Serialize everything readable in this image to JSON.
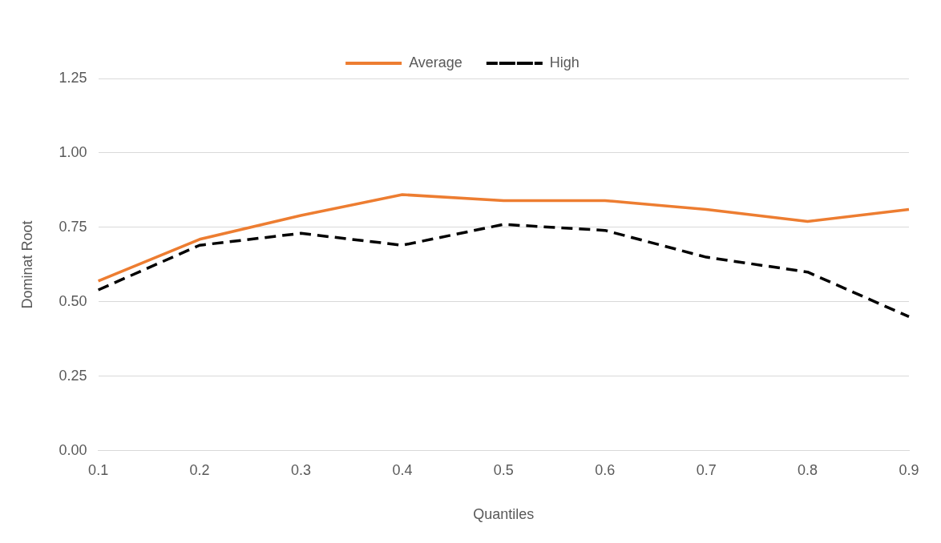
{
  "chart_data": {
    "type": "line",
    "xlabel": "Quantiles",
    "ylabel": "Dominat Root",
    "categories": [
      "0.1",
      "0.2",
      "0.3",
      "0.4",
      "0.5",
      "0.6",
      "0.7",
      "0.8",
      "0.9"
    ],
    "series": [
      {
        "name": "Average",
        "color": "#ed7d31",
        "line_style": "solid",
        "values": [
          0.57,
          0.71,
          0.79,
          0.86,
          0.84,
          0.84,
          0.81,
          0.77,
          0.81
        ]
      },
      {
        "name": "High",
        "color": "#000000",
        "line_style": "dashed",
        "values": [
          0.54,
          0.69,
          0.73,
          0.69,
          0.76,
          0.74,
          0.65,
          0.6,
          0.45
        ]
      }
    ],
    "ylim": [
      0,
      1.25
    ],
    "yticks": [
      {
        "value": 0,
        "label": "0.00"
      },
      {
        "value": 0.25,
        "label": "0.25"
      },
      {
        "value": 0.5,
        "label": "0.50"
      },
      {
        "value": 0.75,
        "label": "0.75"
      },
      {
        "value": 1,
        "label": "1.00"
      },
      {
        "value": 1.25,
        "label": "1.25"
      }
    ],
    "grid": "y",
    "legend": "top",
    "marker": "none"
  }
}
